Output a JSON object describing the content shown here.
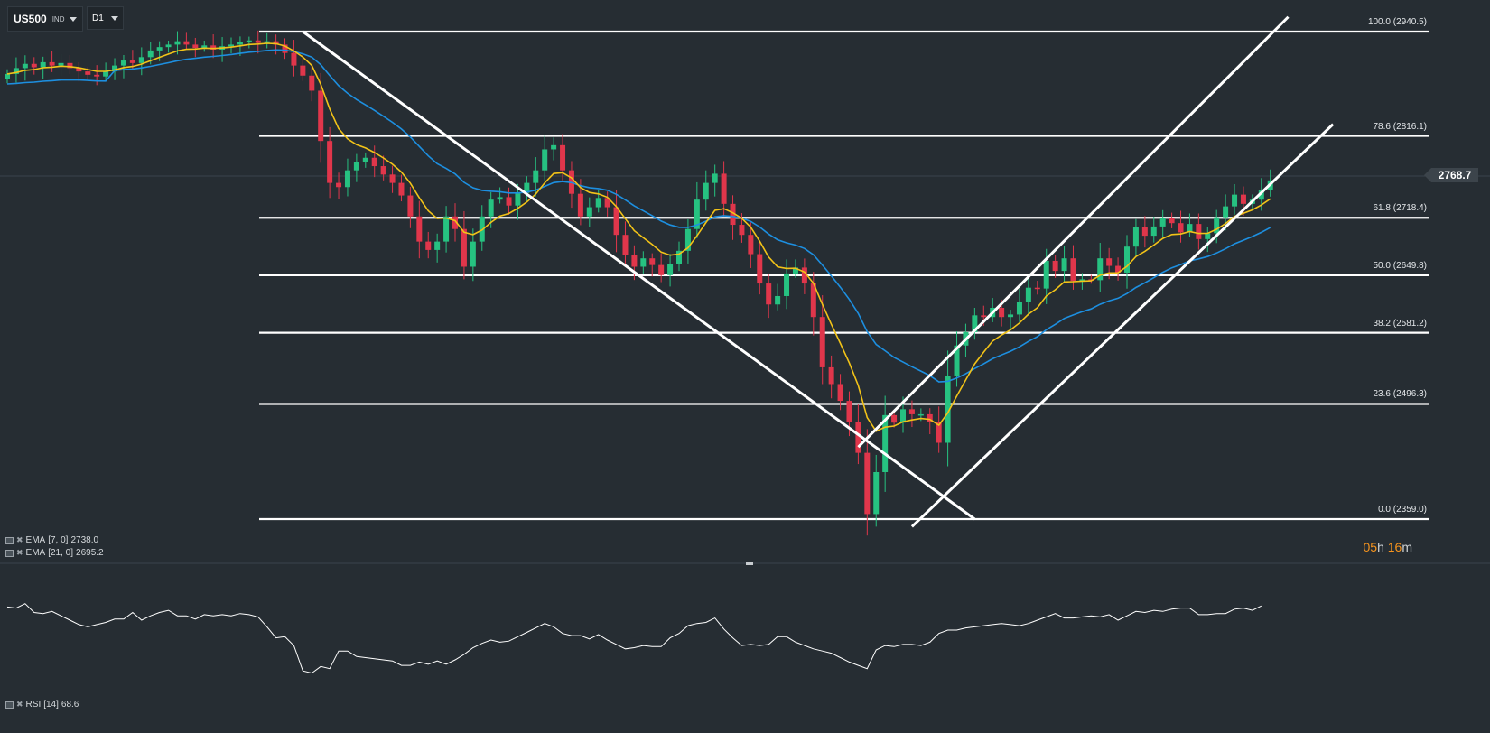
{
  "header": {
    "symbol": "US500",
    "symbol_type": "IND",
    "timeframe": "D1"
  },
  "price_tag": "2768.7",
  "countdown": {
    "hours": "05",
    "h_unit": "h",
    "minutes": "16",
    "m_unit": "m"
  },
  "indicators": {
    "ema7": {
      "name": "EMA",
      "params": "[7, 0]",
      "value": "2738.0"
    },
    "ema21": {
      "name": "EMA",
      "params": "[21, 0]",
      "value": "2695.2"
    },
    "rsi": {
      "name": "RSI",
      "params": "[14]",
      "value": "68.6"
    }
  },
  "colors": {
    "background": "#262d33",
    "bull": "#26c281",
    "bear": "#e0364b",
    "ema7": "#f2c318",
    "ema21": "#1d8fe0",
    "lines": "#ffffff",
    "countdown": "#f7941d"
  },
  "chart_data": {
    "type": "candlestick",
    "y_range": [
      2330,
      2960
    ],
    "current_price": 2768.7,
    "fib_levels": [
      {
        "label": "100.0 (2940.5)",
        "value": 2940.5
      },
      {
        "label": "78.6 (2816.1)",
        "value": 2816.1
      },
      {
        "label": "61.8 (2718.4)",
        "value": 2718.4
      },
      {
        "label": "50.0 (2649.8)",
        "value": 2649.8
      },
      {
        "label": "38.2 (2581.2)",
        "value": 2581.2
      },
      {
        "label": "23.6 (2496.3)",
        "value": 2496.3
      },
      {
        "label": "0.0 (2359.0)",
        "value": 2359.0
      }
    ],
    "trendlines": [
      {
        "name": "downtrend",
        "from": [
          33,
          2940.5
        ],
        "to": [
          108,
          2359.0
        ]
      },
      {
        "name": "channel-lower",
        "from": [
          101,
          2350
        ],
        "to": [
          148,
          2830
        ]
      },
      {
        "name": "channel-upper",
        "from": [
          95,
          2445
        ],
        "to": [
          143,
          2958
        ]
      }
    ],
    "closes": [
      2890,
      2897,
      2902,
      2898,
      2904,
      2900,
      2903,
      2897,
      2893,
      2889,
      2887,
      2893,
      2900,
      2906,
      2903,
      2910,
      2918,
      2922,
      2925,
      2929,
      2925,
      2921,
      2924,
      2919,
      2923,
      2925,
      2928,
      2930,
      2927,
      2929,
      2925,
      2915,
      2900,
      2888,
      2870,
      2810,
      2760,
      2755,
      2775,
      2785,
      2790,
      2780,
      2770,
      2760,
      2745,
      2720,
      2690,
      2680,
      2690,
      2720,
      2705,
      2660,
      2690,
      2720,
      2740,
      2743,
      2733,
      2748,
      2760,
      2775,
      2800,
      2805,
      2775,
      2747,
      2720,
      2731,
      2742,
      2731,
      2698,
      2674,
      2660,
      2670,
      2662,
      2650,
      2663,
      2679,
      2705,
      2740,
      2760,
      2771,
      2735,
      2710,
      2698,
      2675,
      2640,
      2615,
      2625,
      2652,
      2659,
      2640,
      2600,
      2540,
      2520,
      2500,
      2475,
      2438,
      2365,
      2415,
      2483,
      2474,
      2490,
      2484,
      2484,
      2475,
      2450,
      2530,
      2566,
      2582,
      2602,
      2600,
      2611,
      2600,
      2603,
      2618,
      2635,
      2634,
      2667,
      2655,
      2670,
      2643,
      2645,
      2644,
      2670,
      2661,
      2653,
      2684,
      2707,
      2697,
      2708,
      2718,
      2712,
      2701,
      2711,
      2693,
      2700,
      2719,
      2732,
      2746,
      2735,
      2740,
      2751,
      2763
    ]
  },
  "rsi_data": {
    "range": [
      0,
      100
    ],
    "values": [
      80,
      79,
      83,
      75,
      74,
      76,
      72,
      68,
      64,
      62,
      64,
      66,
      69,
      69,
      75,
      68,
      72,
      75,
      77,
      72,
      72,
      69,
      73,
      72,
      73,
      72,
      74,
      73,
      71,
      62,
      52,
      53,
      45,
      22,
      20,
      26,
      24,
      40,
      40,
      35,
      34,
      33,
      32,
      31,
      27,
      27,
      30,
      28,
      31,
      28,
      32,
      37,
      43,
      47,
      50,
      48,
      49,
      53,
      57,
      61,
      65,
      62,
      56,
      54,
      54,
      51,
      55,
      50,
      46,
      42,
      43,
      45,
      44,
      44,
      52,
      56,
      63,
      65,
      66,
      70,
      60,
      52,
      45,
      46,
      45,
      46,
      53,
      53,
      48,
      45,
      42,
      40,
      38,
      34,
      30,
      27,
      24,
      41,
      45,
      44,
      46,
      46,
      45,
      48,
      56,
      59,
      59,
      61,
      62,
      63,
      64,
      65,
      64,
      63,
      65,
      68,
      71,
      74,
      70,
      70,
      71,
      72,
      71,
      73,
      68,
      72,
      76,
      75,
      77,
      76,
      78,
      79,
      79,
      73,
      73,
      74,
      74,
      78,
      79,
      77,
      81
    ]
  }
}
